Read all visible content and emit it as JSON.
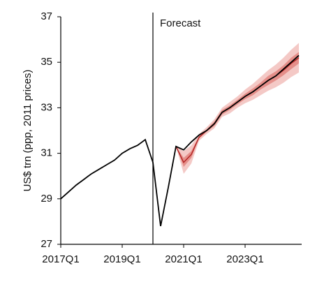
{
  "chart_data": {
    "type": "line",
    "y_label": "US$ trn (ppp, 2011 prices)",
    "categories": [
      "2017Q1",
      null,
      null,
      null,
      null,
      null,
      null,
      null,
      "2019Q1",
      null,
      null,
      null,
      null,
      null,
      null,
      null,
      "2021Q1",
      null,
      null,
      null,
      null,
      null,
      null,
      null,
      "2023Q1",
      null,
      null,
      null,
      null,
      null,
      null,
      null
    ],
    "ylim": [
      27,
      37
    ],
    "yticks": [
      27,
      29,
      31,
      33,
      35,
      37
    ],
    "annotation": {
      "text": "Forecast",
      "category_index": 12
    },
    "bands": [
      {
        "color": "#f4c9c6",
        "lower": [
          null,
          null,
          null,
          null,
          null,
          null,
          null,
          null,
          null,
          null,
          null,
          null,
          null,
          null,
          null,
          31.3,
          30.1,
          30.55,
          31.55,
          31.85,
          32.1,
          32.6,
          32.75,
          33.0,
          33.2,
          33.35,
          33.55,
          33.75,
          33.9,
          34.1,
          34.35,
          34.55
        ],
        "upper": [
          null,
          null,
          null,
          null,
          null,
          null,
          null,
          null,
          null,
          null,
          null,
          null,
          null,
          null,
          null,
          31.3,
          31.1,
          31.35,
          31.85,
          32.15,
          32.5,
          33.0,
          33.25,
          33.5,
          33.8,
          34.05,
          34.35,
          34.65,
          34.9,
          35.2,
          35.55,
          35.85
        ]
      },
      {
        "color": "#e58f8a",
        "lower": [
          null,
          null,
          null,
          null,
          null,
          null,
          null,
          null,
          null,
          null,
          null,
          null,
          null,
          null,
          null,
          31.3,
          30.4,
          30.8,
          31.65,
          31.95,
          32.2,
          32.7,
          32.9,
          33.15,
          33.38,
          33.55,
          33.8,
          34.0,
          34.2,
          34.43,
          34.7,
          34.95
        ],
        "upper": [
          null,
          null,
          null,
          null,
          null,
          null,
          null,
          null,
          null,
          null,
          null,
          null,
          null,
          null,
          null,
          31.3,
          30.8,
          31.1,
          31.75,
          32.05,
          32.4,
          32.9,
          33.1,
          33.35,
          33.62,
          33.85,
          34.1,
          34.4,
          34.6,
          34.87,
          35.2,
          35.45
        ]
      }
    ],
    "series": [
      {
        "color": "#b22222",
        "values": [
          null,
          null,
          null,
          null,
          null,
          null,
          null,
          null,
          null,
          null,
          null,
          null,
          null,
          null,
          null,
          31.3,
          30.6,
          30.95,
          31.7,
          32.0,
          32.3,
          32.8,
          33.0,
          33.25,
          33.5,
          33.7,
          33.95,
          34.2,
          34.4,
          34.65,
          34.95,
          35.2
        ]
      },
      {
        "color": "#000000",
        "values": [
          29.0,
          29.3,
          29.6,
          29.85,
          30.1,
          30.3,
          30.5,
          30.7,
          31.0,
          31.2,
          31.35,
          31.6,
          30.6,
          27.8,
          29.5,
          31.3,
          31.15,
          31.5,
          31.8,
          32.0,
          32.3,
          32.8,
          33.0,
          33.25,
          33.5,
          33.7,
          33.95,
          34.2,
          34.4,
          34.7,
          35.0,
          35.3
        ]
      }
    ]
  }
}
